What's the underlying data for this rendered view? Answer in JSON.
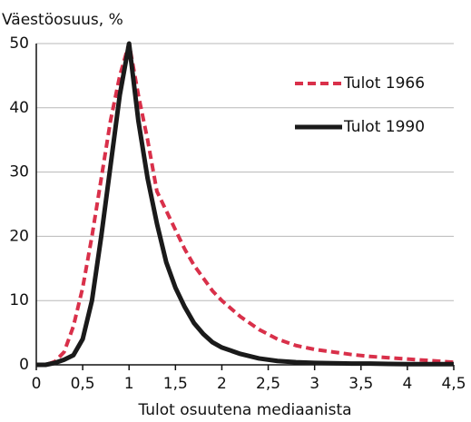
{
  "chart_data": {
    "type": "line",
    "title": "Väestöosuus, %",
    "x_label": "Tulot osuutena mediaanista",
    "x": [
      0,
      0.1,
      0.2,
      0.3,
      0.4,
      0.5,
      0.6,
      0.7,
      0.8,
      0.9,
      1.0,
      1.1,
      1.2,
      1.3,
      1.4,
      1.5,
      1.6,
      1.7,
      1.8,
      1.9,
      2.0,
      2.2,
      2.4,
      2.6,
      2.8,
      3.0,
      3.2,
      3.4,
      3.6,
      3.8,
      4.0,
      4.2,
      4.4,
      4.5
    ],
    "series": [
      {
        "name": "Tulot 1966",
        "color": "#d9304a",
        "dashed": true,
        "values": [
          0,
          0,
          0.5,
          2,
          6,
          12,
          20,
          29,
          38,
          45,
          50,
          42,
          35,
          27,
          24,
          21,
          18,
          15.5,
          13.5,
          11.5,
          10,
          7.5,
          5.5,
          4,
          3,
          2.4,
          2,
          1.6,
          1.3,
          1.1,
          0.9,
          0.7,
          0.5,
          0.4
        ]
      },
      {
        "name": "Tulot 1990",
        "color": "#1a1a1a",
        "dashed": false,
        "values": [
          0,
          0,
          0.3,
          0.8,
          1.5,
          4,
          10,
          20,
          31,
          42,
          50,
          38,
          29,
          22,
          16,
          12,
          9,
          6.5,
          4.8,
          3.5,
          2.7,
          1.7,
          1,
          0.6,
          0.4,
          0.3,
          0.25,
          0.2,
          0.2,
          0.15,
          0.1,
          0.1,
          0.1,
          0.1
        ]
      }
    ],
    "xlim": [
      0,
      4.5
    ],
    "ylim": [
      0,
      50
    ],
    "xticks": [
      0,
      {
        "value": 0.5,
        "label": "0,5"
      },
      1,
      {
        "value": 1.5,
        "label": "1,5"
      },
      2,
      {
        "value": 2.5,
        "label": "2,5"
      },
      3,
      {
        "value": 3.5,
        "label": "3,5"
      },
      4,
      {
        "value": 4.5,
        "label": "4,5"
      }
    ],
    "yticks": [
      0,
      10,
      20,
      30,
      40,
      50
    ],
    "grid": true,
    "legend": "upper right"
  }
}
